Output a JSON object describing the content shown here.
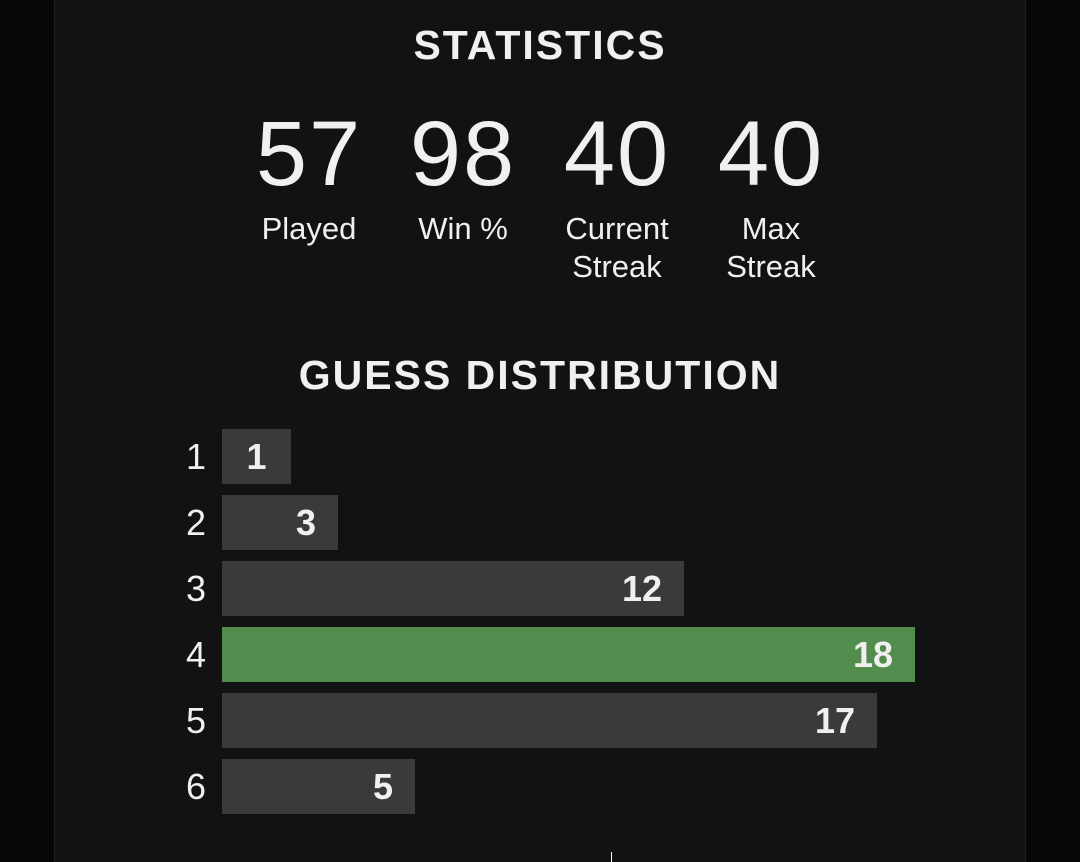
{
  "statistics": {
    "title": "STATISTICS",
    "played": {
      "value": "57",
      "label": "Played"
    },
    "win_pct": {
      "value": "98",
      "label": "Win %"
    },
    "current_streak": {
      "value": "40",
      "label": "Current Streak"
    },
    "max_streak": {
      "value": "40",
      "label": "Max Streak"
    }
  },
  "distribution": {
    "title": "GUESS DISTRIBUTION",
    "highlight_guess": 4,
    "max_value": 18,
    "rows": [
      {
        "guess": "1",
        "count": 1
      },
      {
        "guess": "2",
        "count": 3
      },
      {
        "guess": "3",
        "count": 12
      },
      {
        "guess": "4",
        "count": 18
      },
      {
        "guess": "5",
        "count": 17
      },
      {
        "guess": "6",
        "count": 5
      }
    ]
  },
  "colors": {
    "bar": "#3a3a3c",
    "bar_highlight": "#538d4e",
    "background": "#121213"
  }
}
